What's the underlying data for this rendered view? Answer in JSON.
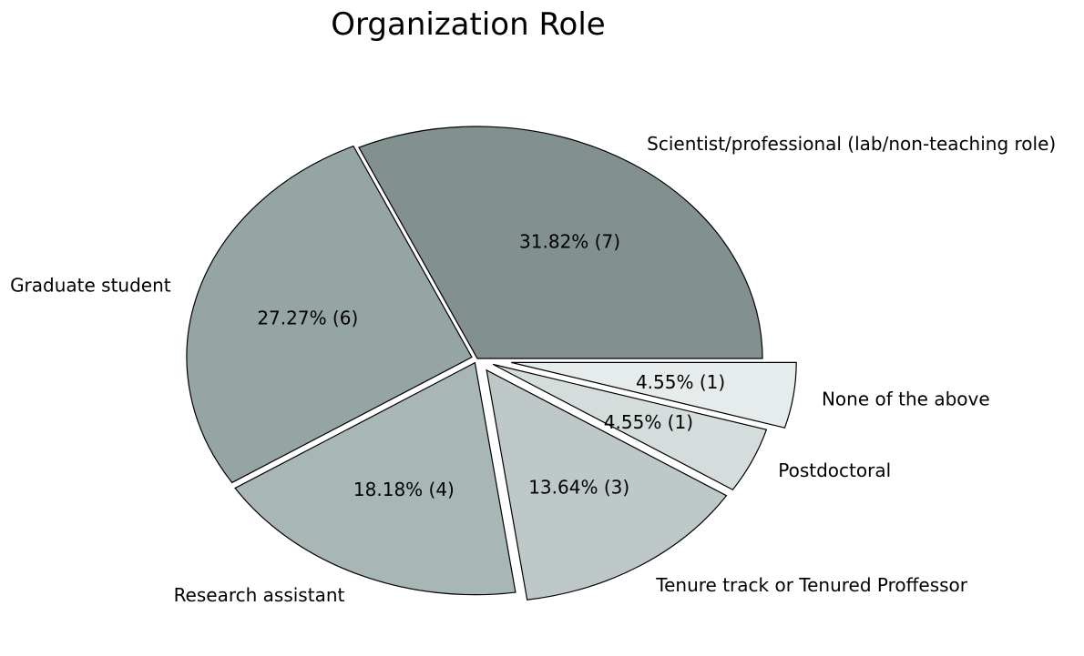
{
  "chart_data": {
    "type": "pie",
    "title": "Organization Role",
    "slices": [
      {
        "label": "Scientist/professional (lab/non-teaching role)",
        "value": 7,
        "percent_label": "31.82%  (7)",
        "color": "#839090"
      },
      {
        "label": "Graduate student",
        "value": 6,
        "percent_label": "27.27%  (6)",
        "color": "#95a5a4"
      },
      {
        "label": "Research assistant",
        "value": 4,
        "percent_label": "18.18%  (4)",
        "color": "#a9b6b6"
      },
      {
        "label": "Tenure track or Tenured Proffessor",
        "value": 3,
        "percent_label": "13.64%  (3)",
        "color": "#bfc8c9"
      },
      {
        "label": "Postdoctoral",
        "value": 1,
        "percent_label": "4.55%  (1)",
        "color": "#d5dcdc"
      },
      {
        "label": "None of the above",
        "value": 1,
        "percent_label": "4.55%  (1)",
        "color": "#e6ebeb"
      }
    ],
    "explode": [
      0,
      0.02,
      0.02,
      0.06,
      0.06,
      0.12
    ],
    "start_angle_deg": 0,
    "direction": "counterclockwise",
    "legend": "none"
  }
}
